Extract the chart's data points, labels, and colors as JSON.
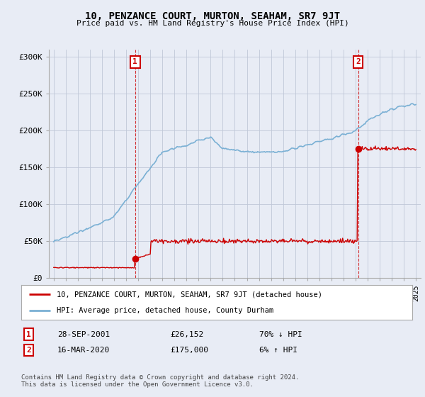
{
  "title": "10, PENZANCE COURT, MURTON, SEAHAM, SR7 9JT",
  "subtitle": "Price paid vs. HM Land Registry's House Price Index (HPI)",
  "property_label": "10, PENZANCE COURT, MURTON, SEAHAM, SR7 9JT (detached house)",
  "hpi_label": "HPI: Average price, detached house, County Durham",
  "transaction1": {
    "label": "1",
    "date": "28-SEP-2001",
    "price": "£26,152",
    "pct": "70% ↓ HPI"
  },
  "transaction2": {
    "label": "2",
    "date": "16-MAR-2020",
    "price": "£175,000",
    "pct": "6% ↑ HPI"
  },
  "footnote": "Contains HM Land Registry data © Crown copyright and database right 2024.\nThis data is licensed under the Open Government Licence v3.0.",
  "property_color": "#cc0000",
  "hpi_color": "#7ab0d4",
  "ylim": [
    0,
    310000
  ],
  "yticks": [
    0,
    50000,
    100000,
    150000,
    200000,
    250000,
    300000
  ],
  "ytick_labels": [
    "£0",
    "£50K",
    "£100K",
    "£150K",
    "£200K",
    "£250K",
    "£300K"
  ],
  "background_color": "#e8ecf5",
  "plot_bg_color": "#e8ecf5",
  "grid_color": "#c0c8d8",
  "vline1_x": 2001.75,
  "vline2_x": 2020.21,
  "marker1_x": 2001.75,
  "marker1_y": 26152,
  "marker2_x": 2020.21,
  "marker2_y": 175000,
  "xmin": 1994.6,
  "xmax": 2025.4
}
